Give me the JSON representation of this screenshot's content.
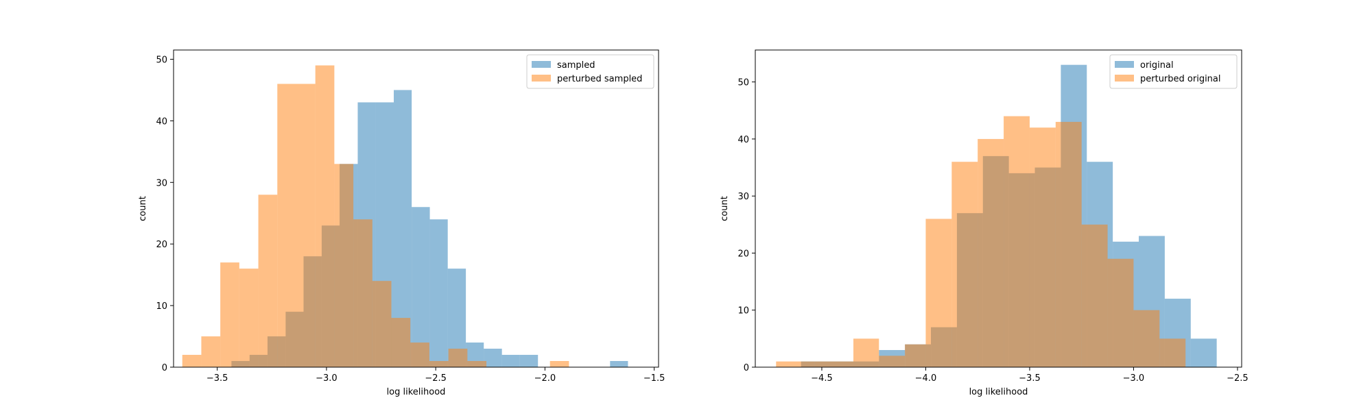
{
  "chart_data": [
    {
      "type": "histogram",
      "xlabel": "log likelihood",
      "ylabel": "count",
      "xlim": [
        -3.7,
        -1.48
      ],
      "ylim": [
        0,
        51.5
      ],
      "xticks": [
        -3.5,
        -3.0,
        -2.5,
        -2.0,
        -1.5
      ],
      "xtick_labels": [
        "−3.5",
        "−3.0",
        "−2.5",
        "−2.0",
        "−1.5"
      ],
      "yticks": [
        0,
        10,
        20,
        30,
        40,
        50
      ],
      "ytick_labels": [
        "0",
        "10",
        "20",
        "30",
        "40",
        "50"
      ],
      "legend_position": "top-right",
      "grid": false,
      "series": [
        {
          "name": "sampled",
          "color": "#1f77b4",
          "alpha": 0.5,
          "bins": [
            {
              "x0": -3.435,
              "x1": -3.352,
              "count": 1
            },
            {
              "x0": -3.352,
              "x1": -3.27,
              "count": 2
            },
            {
              "x0": -3.27,
              "x1": -3.187,
              "count": 5
            },
            {
              "x0": -3.187,
              "x1": -3.105,
              "count": 9
            },
            {
              "x0": -3.105,
              "x1": -3.022,
              "count": 18
            },
            {
              "x0": -3.022,
              "x1": -2.94,
              "count": 23
            },
            {
              "x0": -2.94,
              "x1": -2.857,
              "count": 33
            },
            {
              "x0": -2.857,
              "x1": -2.775,
              "count": 43
            },
            {
              "x0": -2.775,
              "x1": -2.692,
              "count": 43
            },
            {
              "x0": -2.692,
              "x1": -2.61,
              "count": 45
            },
            {
              "x0": -2.61,
              "x1": -2.527,
              "count": 26
            },
            {
              "x0": -2.527,
              "x1": -2.445,
              "count": 24
            },
            {
              "x0": -2.445,
              "x1": -2.362,
              "count": 16
            },
            {
              "x0": -2.362,
              "x1": -2.28,
              "count": 4
            },
            {
              "x0": -2.28,
              "x1": -2.197,
              "count": 3
            },
            {
              "x0": -2.197,
              "x1": -2.115,
              "count": 2
            },
            {
              "x0": -2.115,
              "x1": -2.032,
              "count": 2
            },
            {
              "x0": -1.702,
              "x1": -1.62,
              "count": 1
            }
          ]
        },
        {
          "name": "perturbed sampled",
          "color": "#ff7f0e",
          "alpha": 0.5,
          "bins": [
            {
              "x0": -3.66,
              "x1": -3.573,
              "count": 2
            },
            {
              "x0": -3.573,
              "x1": -3.486,
              "count": 5
            },
            {
              "x0": -3.486,
              "x1": -3.399,
              "count": 17
            },
            {
              "x0": -3.399,
              "x1": -3.312,
              "count": 16
            },
            {
              "x0": -3.312,
              "x1": -3.225,
              "count": 28
            },
            {
              "x0": -3.225,
              "x1": -3.138,
              "count": 46
            },
            {
              "x0": -3.138,
              "x1": -3.051,
              "count": 46
            },
            {
              "x0": -3.051,
              "x1": -2.964,
              "count": 49
            },
            {
              "x0": -2.964,
              "x1": -2.877,
              "count": 33
            },
            {
              "x0": -2.877,
              "x1": -2.79,
              "count": 24
            },
            {
              "x0": -2.79,
              "x1": -2.703,
              "count": 14
            },
            {
              "x0": -2.703,
              "x1": -2.616,
              "count": 8
            },
            {
              "x0": -2.616,
              "x1": -2.529,
              "count": 4
            },
            {
              "x0": -2.529,
              "x1": -2.442,
              "count": 1
            },
            {
              "x0": -2.442,
              "x1": -2.355,
              "count": 3
            },
            {
              "x0": -2.355,
              "x1": -2.268,
              "count": 1
            },
            {
              "x0": -1.977,
              "x1": -1.89,
              "count": 1
            }
          ]
        }
      ]
    },
    {
      "type": "histogram",
      "xlabel": "log likelihood",
      "ylabel": "count",
      "xlim": [
        -4.82,
        -2.48
      ],
      "ylim": [
        0,
        55.6
      ],
      "xticks": [
        -4.5,
        -4.0,
        -3.5,
        -3.0,
        -2.5
      ],
      "xtick_labels": [
        "−4.5",
        "−4.0",
        "−3.5",
        "−3.0",
        "−2.5"
      ],
      "yticks": [
        0,
        10,
        20,
        30,
        40,
        50
      ],
      "ytick_labels": [
        "0",
        "10",
        "20",
        "30",
        "40",
        "50"
      ],
      "legend_position": "top-right",
      "grid": false,
      "series": [
        {
          "name": "original",
          "color": "#1f77b4",
          "alpha": 0.5,
          "bins": [
            {
              "x0": -4.6,
              "x1": -4.475,
              "count": 1
            },
            {
              "x0": -4.475,
              "x1": -4.35,
              "count": 1
            },
            {
              "x0": -4.35,
              "x1": -4.225,
              "count": 1
            },
            {
              "x0": -4.225,
              "x1": -4.1,
              "count": 3
            },
            {
              "x0": -4.1,
              "x1": -3.975,
              "count": 4
            },
            {
              "x0": -3.975,
              "x1": -3.85,
              "count": 7
            },
            {
              "x0": -3.85,
              "x1": -3.725,
              "count": 27
            },
            {
              "x0": -3.725,
              "x1": -3.6,
              "count": 37
            },
            {
              "x0": -3.6,
              "x1": -3.475,
              "count": 34
            },
            {
              "x0": -3.475,
              "x1": -3.35,
              "count": 35
            },
            {
              "x0": -3.35,
              "x1": -3.225,
              "count": 53
            },
            {
              "x0": -3.225,
              "x1": -3.1,
              "count": 36
            },
            {
              "x0": -3.1,
              "x1": -2.975,
              "count": 22
            },
            {
              "x0": -2.975,
              "x1": -2.85,
              "count": 23
            },
            {
              "x0": -2.85,
              "x1": -2.725,
              "count": 12
            },
            {
              "x0": -2.725,
              "x1": -2.6,
              "count": 5
            }
          ]
        },
        {
          "name": "perturbed original",
          "color": "#ff7f0e",
          "alpha": 0.5,
          "bins": [
            {
              "x0": -4.72,
              "x1": -4.534,
              "count": 1
            },
            {
              "x0": -4.534,
              "x1": -4.348,
              "count": 1
            },
            {
              "x0": -4.348,
              "x1": -4.225,
              "count": 5
            },
            {
              "x0": -4.225,
              "x1": -4.1,
              "count": 2
            },
            {
              "x0": -4.1,
              "x1": -4.0,
              "count": 4
            },
            {
              "x0": -4.0,
              "x1": -3.875,
              "count": 26
            },
            {
              "x0": -3.875,
              "x1": -3.75,
              "count": 36
            },
            {
              "x0": -3.75,
              "x1": -3.625,
              "count": 40
            },
            {
              "x0": -3.625,
              "x1": -3.5,
              "count": 44
            },
            {
              "x0": -3.5,
              "x1": -3.375,
              "count": 42
            },
            {
              "x0": -3.375,
              "x1": -3.25,
              "count": 43
            },
            {
              "x0": -3.25,
              "x1": -3.125,
              "count": 25
            },
            {
              "x0": -3.125,
              "x1": -3.0,
              "count": 19
            },
            {
              "x0": -3.0,
              "x1": -2.875,
              "count": 10
            },
            {
              "x0": -2.875,
              "x1": -2.75,
              "count": 5
            }
          ]
        }
      ]
    }
  ]
}
